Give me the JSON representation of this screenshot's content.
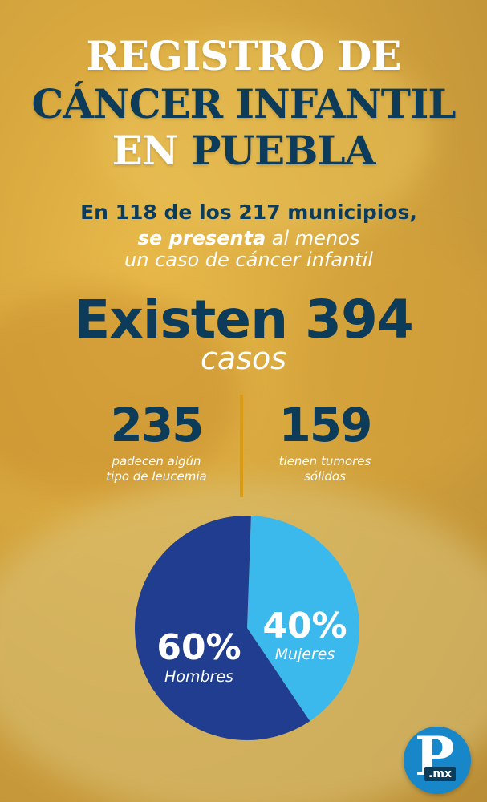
{
  "title": {
    "line1": "REGISTRO DE",
    "line2": "CÁNCER INFANTIL",
    "line3_a": "EN ",
    "line3_b": "PUEBLA"
  },
  "subtitle": {
    "line1": "En 118 de los 217 municipios,",
    "line2_bold": "se presenta",
    "line2_rest": " al menos",
    "line3": "un caso de cáncer infantil"
  },
  "total": {
    "headline": "Existen 394",
    "unit": "casos"
  },
  "stats": [
    {
      "value": "235",
      "label_line1": "padecen algún",
      "label_line2": "tipo de leucemia"
    },
    {
      "value": "159",
      "label_line1": "tienen tumores",
      "label_line2": "sólidos"
    }
  ],
  "chart_data": {
    "type": "pie",
    "slices": [
      {
        "label": "Hombres",
        "value": 60,
        "display": "60%",
        "color": "#213d8f"
      },
      {
        "label": "Mujeres",
        "value": 40,
        "display": "40%",
        "color": "#3bb8ec"
      }
    ]
  },
  "logo": {
    "letter": "P",
    "suffix": ".mx",
    "color": "#1787c9"
  },
  "colors": {
    "navy": "#0d3b5a",
    "gold": "#d99a14",
    "white": "#ffffff"
  }
}
